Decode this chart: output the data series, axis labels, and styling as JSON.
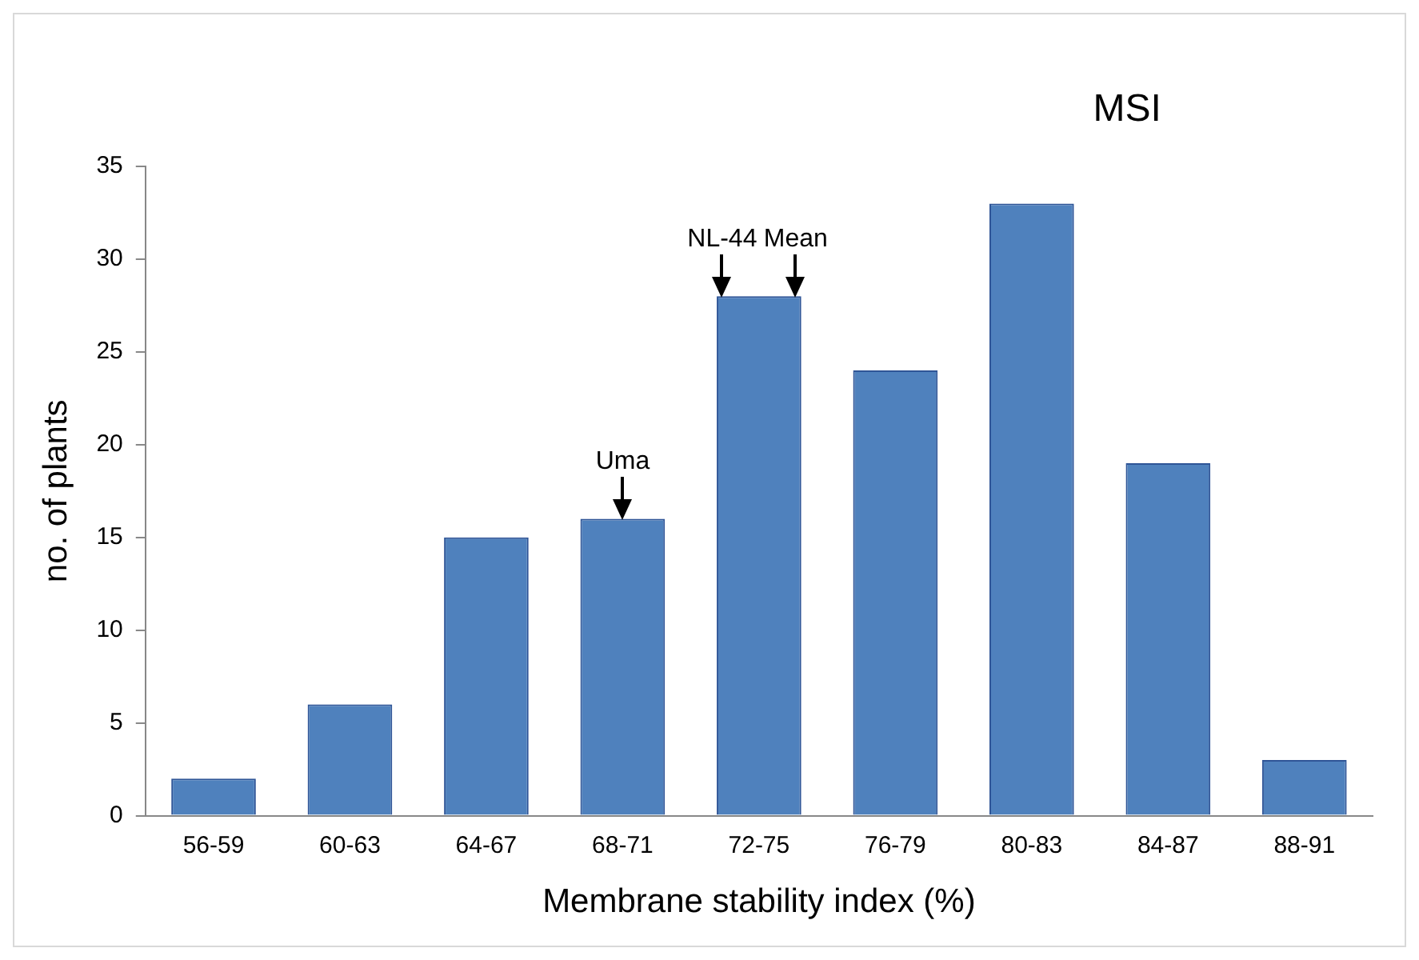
{
  "chart_data": {
    "type": "bar",
    "title": "MSI",
    "xlabel": "Membrane stability index (%)",
    "ylabel": "no. of plants",
    "categories": [
      "56-59",
      "60-63",
      "64-67",
      "68-71",
      "72-75",
      "76-79",
      "80-83",
      "84-87",
      "88-91"
    ],
    "values": [
      2,
      6,
      15,
      16,
      28,
      24,
      33,
      19,
      3
    ],
    "color": "#4f81bd",
    "ylim": [
      0,
      35
    ],
    "yticks": [
      0,
      5,
      10,
      15,
      20,
      25,
      30,
      35
    ],
    "grid": false,
    "annotations": [
      {
        "text": "Uma",
        "x": "68-71",
        "y": 16
      },
      {
        "text": "NL-44",
        "x": "72-75",
        "y": 28
      },
      {
        "text": "Mean",
        "x": "72-75",
        "y": 28
      }
    ]
  }
}
